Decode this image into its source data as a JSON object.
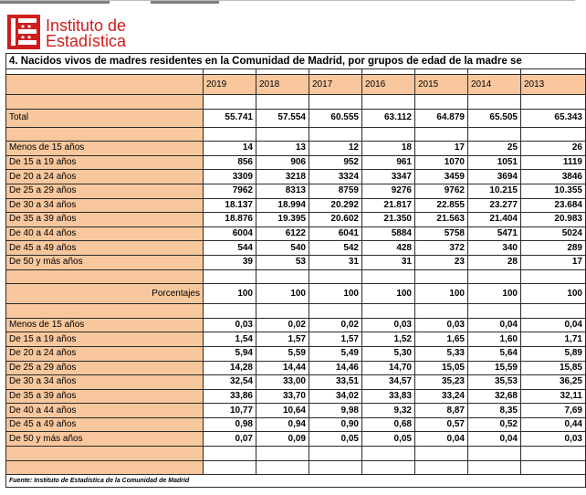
{
  "logo": {
    "line1": "Instituto de",
    "line2": "Estadística",
    "colors": {
      "brand_red": "#d01d1d",
      "label_fill": "#f8c79d"
    }
  },
  "title": "4. Nacidos vivos de madres residentes en la Comunidad de Madrid, por grupos de edad de la madre se",
  "years": [
    "2019",
    "2018",
    "2017",
    "2016",
    "2015",
    "2014",
    "2013"
  ],
  "total": {
    "label": "Total",
    "values": [
      "55.741",
      "57.554",
      "60.555",
      "63.112",
      "64.879",
      "65.505",
      "65.343"
    ]
  },
  "age_groups": [
    {
      "label": "Menos de 15 años",
      "values": [
        "14",
        "13",
        "12",
        "18",
        "17",
        "25",
        "26"
      ]
    },
    {
      "label": "De 15 a 19 años",
      "values": [
        "856",
        "906",
        "952",
        "961",
        "1070",
        "1051",
        "1119"
      ]
    },
    {
      "label": "De 20 a 24 años",
      "values": [
        "3309",
        "3218",
        "3324",
        "3347",
        "3459",
        "3694",
        "3846"
      ]
    },
    {
      "label": "De 25 a 29 años",
      "values": [
        "7962",
        "8313",
        "8759",
        "9276",
        "9762",
        "10.215",
        "10.355"
      ]
    },
    {
      "label": "De 30 a 34 años",
      "values": [
        "18.137",
        "18.994",
        "20.292",
        "21.817",
        "22.855",
        "23.277",
        "23.684"
      ]
    },
    {
      "label": "De 35 a 39 años",
      "values": [
        "18.876",
        "19.395",
        "20.602",
        "21.350",
        "21.563",
        "21.404",
        "20.983"
      ]
    },
    {
      "label": "De 40 a 44 años",
      "values": [
        "6004",
        "6122",
        "6041",
        "5884",
        "5758",
        "5471",
        "5024"
      ]
    },
    {
      "label": "De 45 a 49 años",
      "values": [
        "544",
        "540",
        "542",
        "428",
        "372",
        "340",
        "289"
      ]
    },
    {
      "label": "De 50 y más años",
      "values": [
        "39",
        "53",
        "31",
        "31",
        "23",
        "28",
        "17"
      ]
    }
  ],
  "percent_total": {
    "label": "Porcentajes",
    "values": [
      "100",
      "100",
      "100",
      "100",
      "100",
      "100",
      "100"
    ]
  },
  "percent_groups": [
    {
      "label": "Menos de 15 años",
      "values": [
        "0,03",
        "0,02",
        "0,02",
        "0,03",
        "0,03",
        "0,04",
        "0,04"
      ]
    },
    {
      "label": "De 15 a 19 años",
      "values": [
        "1,54",
        "1,57",
        "1,57",
        "1,52",
        "1,65",
        "1,60",
        "1,71"
      ]
    },
    {
      "label": "De 20 a 24 años",
      "values": [
        "5,94",
        "5,59",
        "5,49",
        "5,30",
        "5,33",
        "5,64",
        "5,89"
      ]
    },
    {
      "label": "De 25 a 29 años",
      "values": [
        "14,28",
        "14,44",
        "14,46",
        "14,70",
        "15,05",
        "15,59",
        "15,85"
      ]
    },
    {
      "label": "De 30 a 34 años",
      "values": [
        "32,54",
        "33,00",
        "33,51",
        "34,57",
        "35,23",
        "35,53",
        "36,25"
      ]
    },
    {
      "label": "De 35 a 39 años",
      "values": [
        "33,86",
        "33,70",
        "34,02",
        "33,83",
        "33,24",
        "32,68",
        "32,11"
      ]
    },
    {
      "label": "De 40 a 44 años",
      "values": [
        "10,77",
        "10,64",
        "9,98",
        "9,32",
        "8,87",
        "8,35",
        "7,69"
      ]
    },
    {
      "label": "De 45 a 49 años",
      "values": [
        "0,98",
        "0,94",
        "0,90",
        "0,68",
        "0,57",
        "0,52",
        "0,44"
      ]
    },
    {
      "label": "De 50 y más años",
      "values": [
        "0,07",
        "0,09",
        "0,05",
        "0,05",
        "0,04",
        "0,04",
        "0,03"
      ]
    }
  ],
  "footnote": "Fuente: Instituto de Estadística de la Comunidad de Madrid"
}
